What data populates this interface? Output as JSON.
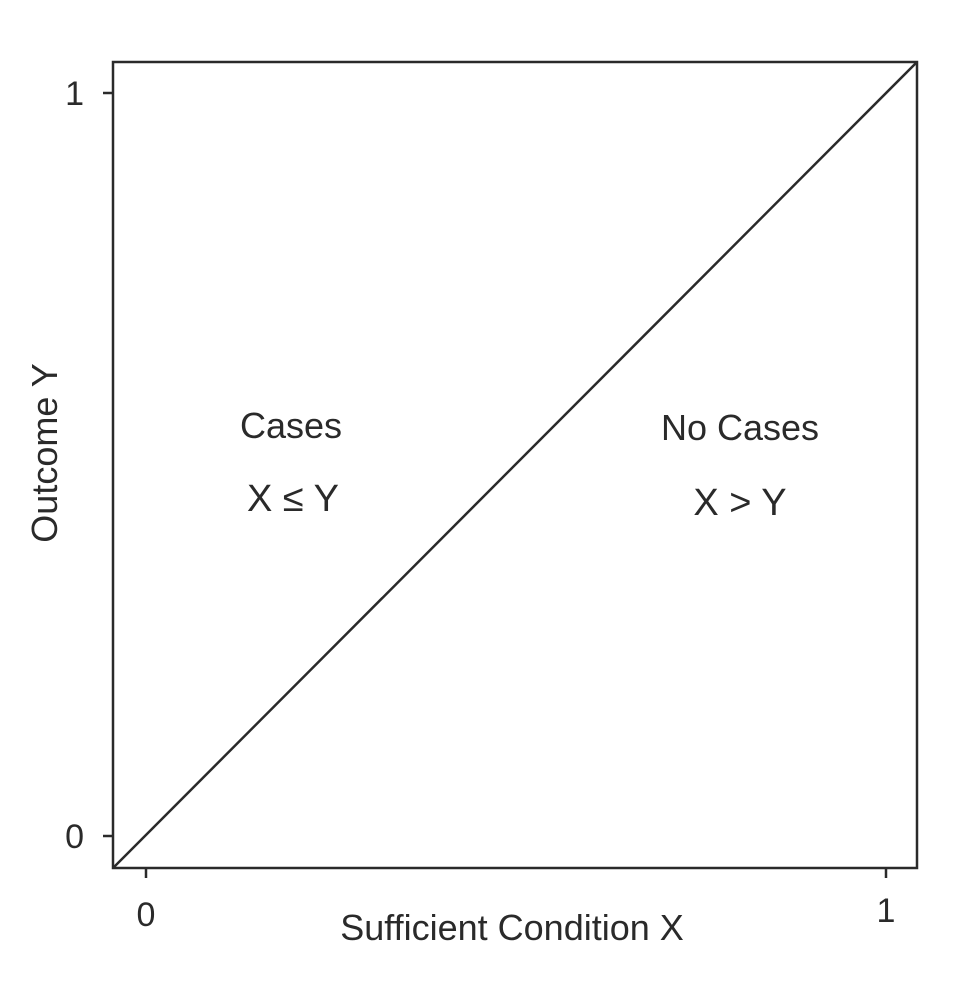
{
  "chart_data": {
    "type": "line",
    "xlabel": "Sufficient Condition X",
    "ylabel": "Outcome Y",
    "xlim": [
      0,
      1
    ],
    "ylim": [
      0,
      1
    ],
    "x_ticks": [
      {
        "value": 0,
        "label": "0"
      },
      {
        "value": 1,
        "label": "1"
      }
    ],
    "y_ticks": [
      {
        "value": 0,
        "label": "0"
      },
      {
        "value": 1,
        "label": "1"
      }
    ],
    "series": [
      {
        "x": [
          0,
          1
        ],
        "y": [
          0,
          1
        ],
        "color": "#2a2a2a"
      }
    ],
    "regions": [
      {
        "label": "Cases",
        "expression": "X ≤ Y",
        "side": "above-left"
      },
      {
        "label": "No Cases",
        "expression": "X > Y",
        "side": "below-right"
      }
    ],
    "grid": false,
    "legend": "none"
  }
}
